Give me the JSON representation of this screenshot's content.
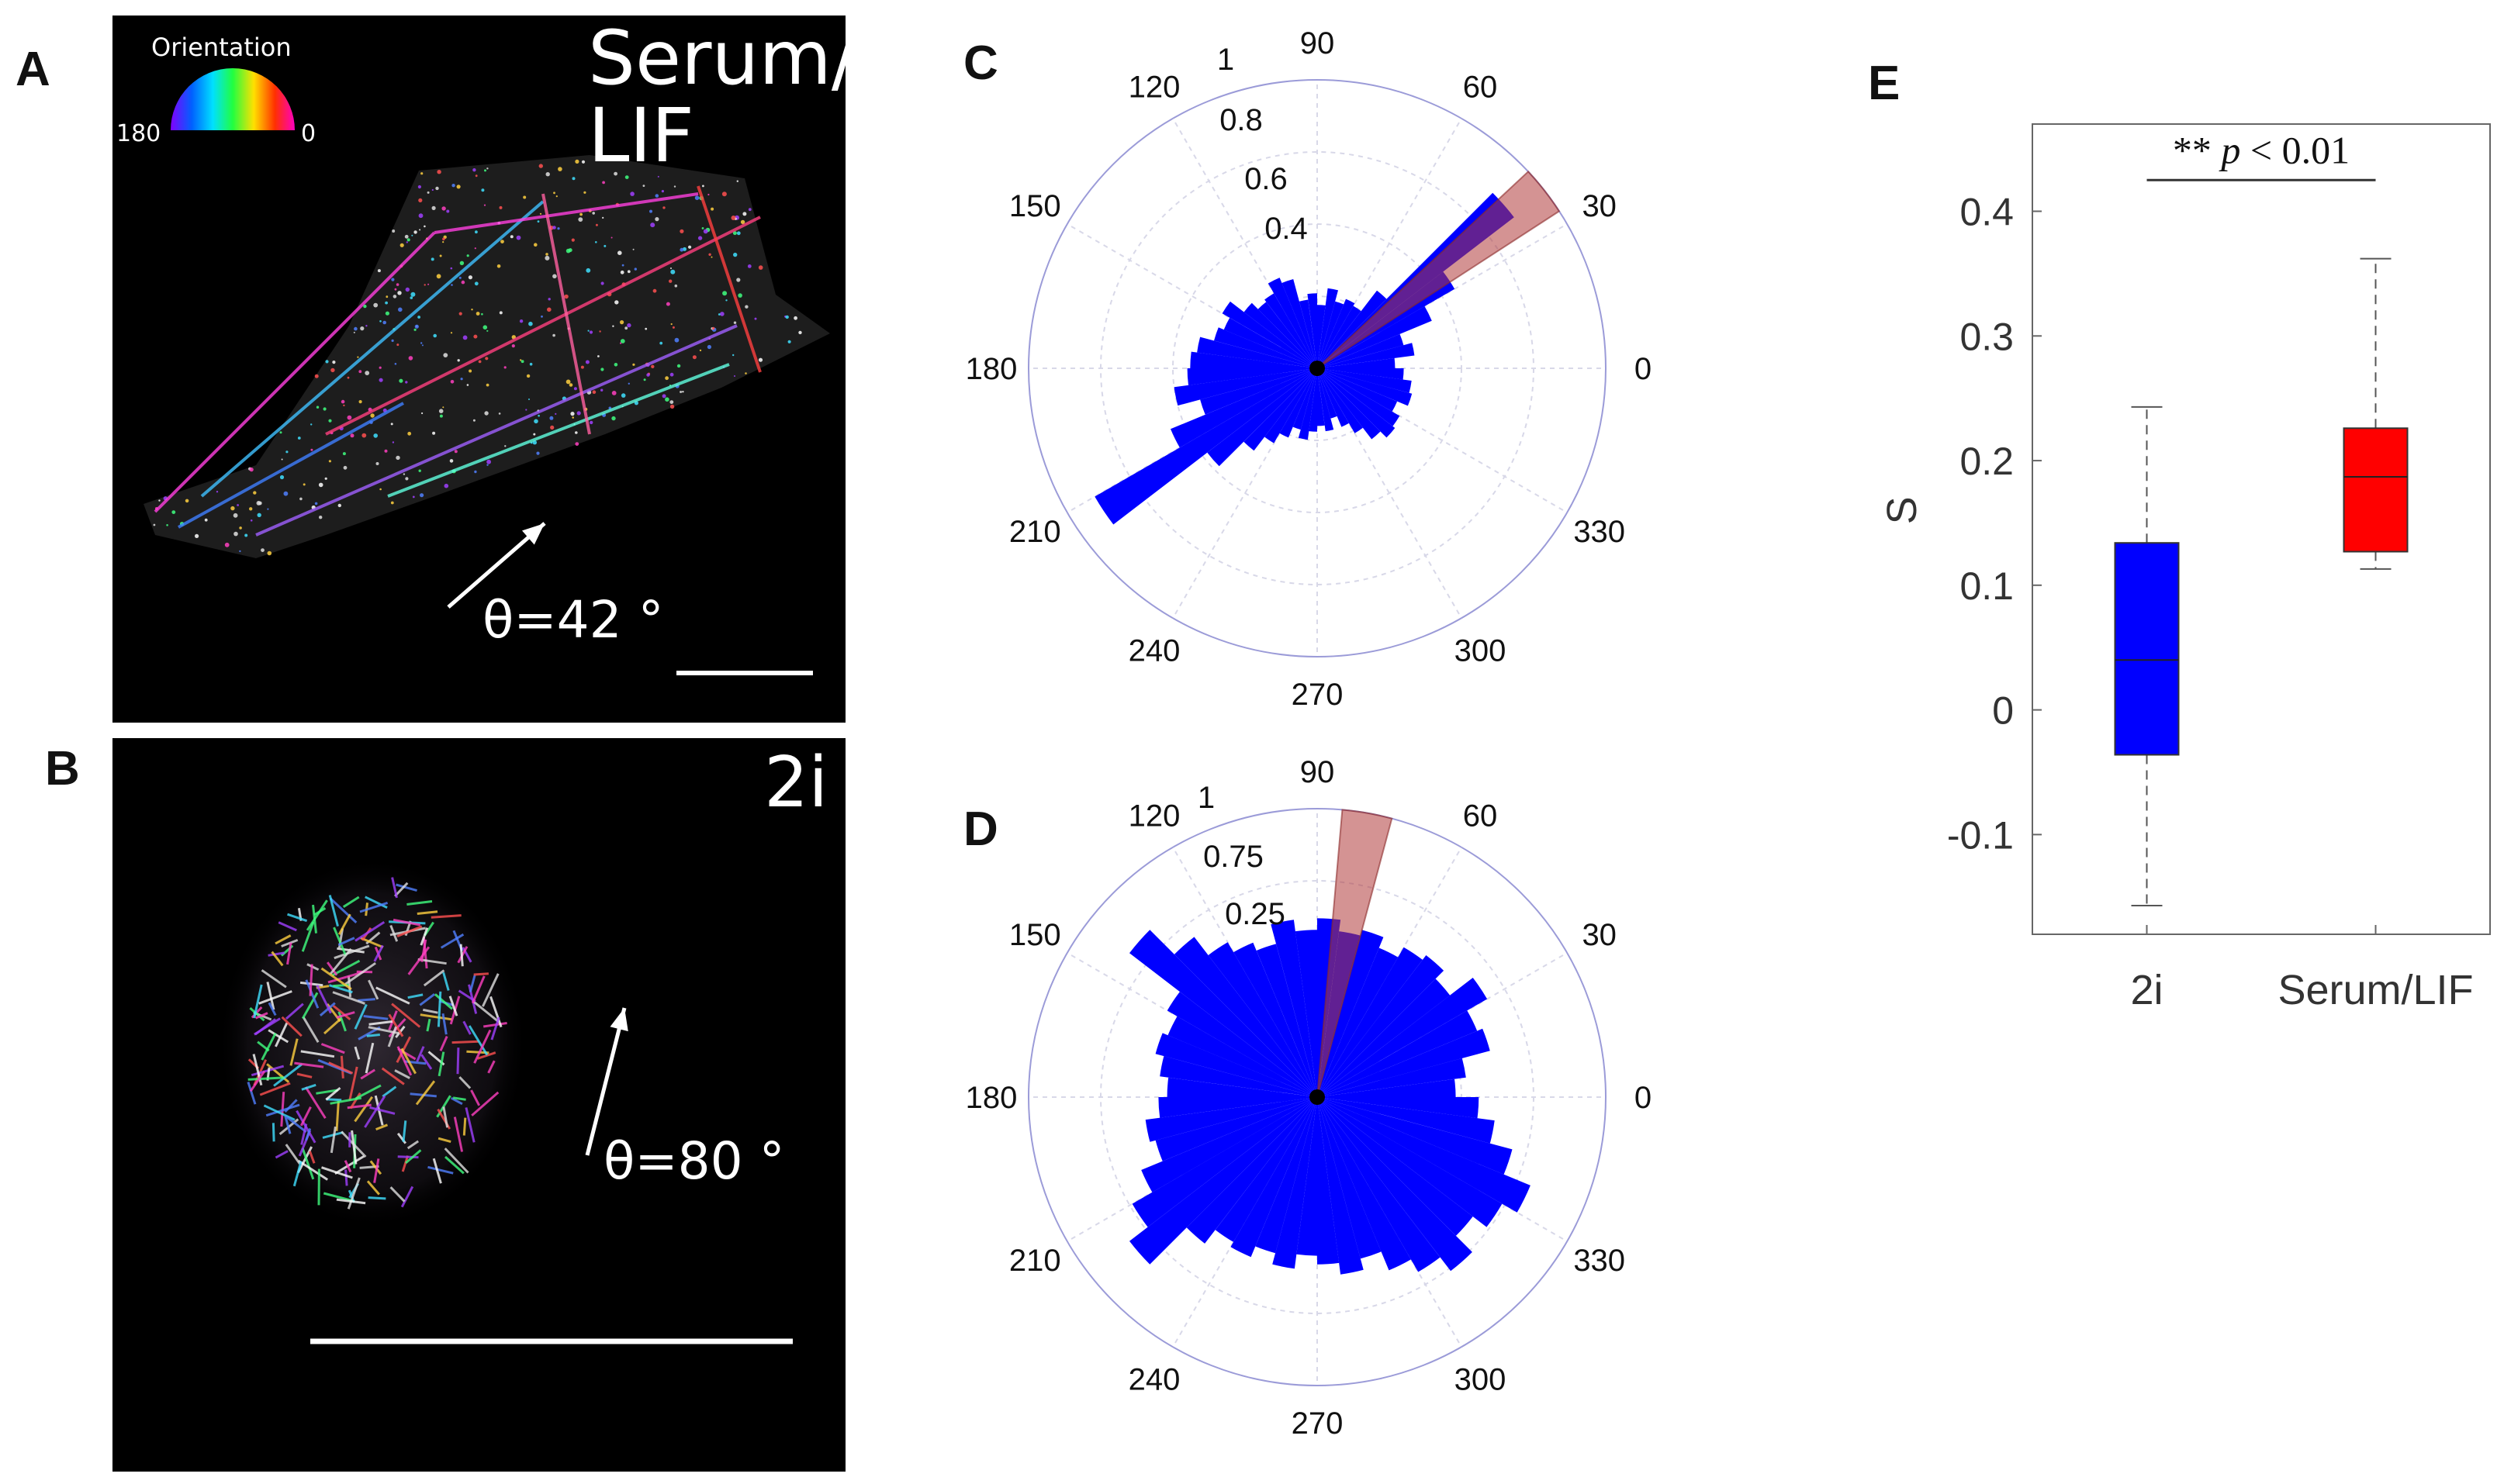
{
  "panels": {
    "A": {
      "letter": "A",
      "colorbar_title": "Orientation",
      "colorbar_min": "180",
      "colorbar_max": "0",
      "condition": "Serum/\nLIF",
      "angle_text": "θ=42 °",
      "mean_angle_deg": 42
    },
    "B": {
      "letter": "B",
      "condition": "2i",
      "angle_text": "θ=80 °",
      "mean_angle_deg": 80
    },
    "C": {
      "letter": "C"
    },
    "D": {
      "letter": "D"
    },
    "E": {
      "letter": "E"
    }
  },
  "colors": {
    "bar_blue": "#0000ff",
    "sector_red": "#b03a3a",
    "box_red": "#ff0000",
    "grid": "#d8d8e8",
    "outer_ring": "#9b9bd8"
  },
  "chart_data": [
    {
      "id": "C",
      "type": "polar_histogram",
      "angle_ticks": [
        "90",
        "60",
        "30",
        "0",
        "330",
        "300",
        "270",
        "240",
        "210",
        "180",
        "150",
        "120"
      ],
      "radial_ticks": [
        "1",
        "0.8",
        "0.6",
        "0.4"
      ],
      "rmax": 1,
      "bin_width_deg": 7.5,
      "centers": [
        3.75,
        11.25,
        18.75,
        26.25,
        33.75,
        41.25,
        48.75,
        56.25,
        63.75,
        71.25,
        78.75,
        86.25,
        93.75,
        101.25,
        108.75,
        116.25,
        123.75,
        131.25,
        138.75,
        146.25,
        153.75,
        161.25,
        168.75,
        176.25,
        183.75,
        191.25,
        198.75,
        206.25,
        213.75,
        221.25,
        228.75,
        236.25,
        243.75,
        251.25,
        258.75,
        266.25,
        273.75,
        281.25,
        288.75,
        296.25,
        303.75,
        311.25,
        318.75,
        326.25,
        333.75,
        341.25,
        348.75,
        356.25
      ],
      "values": [
        0.27,
        0.34,
        0.31,
        0.43,
        0.55,
        0.86,
        0.34,
        0.25,
        0.26,
        0.24,
        0.28,
        0.22,
        0.26,
        0.24,
        0.32,
        0.34,
        0.3,
        0.29,
        0.32,
        0.38,
        0.35,
        0.37,
        0.42,
        0.44,
        0.45,
        0.5,
        0.42,
        0.55,
        0.89,
        0.48,
        0.36,
        0.3,
        0.26,
        0.22,
        0.25,
        0.22,
        0.2,
        0.22,
        0.18,
        0.22,
        0.26,
        0.31,
        0.34,
        0.33,
        0.3,
        0.34,
        0.33,
        0.3
      ],
      "mean_sector_deg": [
        33,
        43
      ],
      "mean_sector_r": [
        0,
        1
      ]
    },
    {
      "id": "D",
      "type": "polar_histogram",
      "angle_ticks": [
        "90",
        "60",
        "30",
        "0",
        "330",
        "300",
        "270",
        "240",
        "210",
        "180",
        "150",
        "120"
      ],
      "radial_ticks": [
        "1",
        "0.75",
        "0.25"
      ],
      "rmax": 1,
      "bin_width_deg": 7.5,
      "centers": [
        3.75,
        11.25,
        18.75,
        26.25,
        33.75,
        41.25,
        48.75,
        56.25,
        63.75,
        71.25,
        78.75,
        86.25,
        93.75,
        101.25,
        108.75,
        116.25,
        123.75,
        131.25,
        138.75,
        146.25,
        153.75,
        161.25,
        168.75,
        176.25,
        183.75,
        191.25,
        198.75,
        206.25,
        213.75,
        221.25,
        228.75,
        236.25,
        243.75,
        251.25,
        258.75,
        266.25,
        273.75,
        281.25,
        288.75,
        296.25,
        303.75,
        311.25,
        318.75,
        326.25,
        333.75,
        341.25,
        348.75,
        356.25
      ],
      "values": [
        0.48,
        0.52,
        0.62,
        0.6,
        0.68,
        0.58,
        0.62,
        0.6,
        0.56,
        0.6,
        0.58,
        0.62,
        0.58,
        0.62,
        0.55,
        0.58,
        0.62,
        0.7,
        0.82,
        0.6,
        0.56,
        0.58,
        0.55,
        0.52,
        0.55,
        0.6,
        0.58,
        0.66,
        0.74,
        0.82,
        0.64,
        0.58,
        0.6,
        0.56,
        0.6,
        0.55,
        0.58,
        0.62,
        0.58,
        0.65,
        0.7,
        0.76,
        0.68,
        0.74,
        0.8,
        0.7,
        0.62,
        0.56
      ],
      "mean_sector_deg": [
        75,
        85
      ],
      "mean_sector_r": [
        0,
        1
      ]
    },
    {
      "id": "E",
      "type": "boxplot",
      "ylabel": "S",
      "ylim": [
        -0.18,
        0.47
      ],
      "yticks": [
        -0.1,
        0,
        0.1,
        0.2,
        0.3,
        0.4
      ],
      "ytick_labels": [
        "-0.1",
        "0",
        "0.1",
        "0.2",
        "0.3",
        "0.4"
      ],
      "categories": [
        "2i",
        "Serum/LIF"
      ],
      "boxes": [
        {
          "whisker_low": -0.157,
          "q1": -0.036,
          "median": 0.04,
          "q3": 0.134,
          "whisker_high": 0.243,
          "color": "#0000ff"
        },
        {
          "whisker_low": 0.113,
          "q1": 0.127,
          "median": 0.187,
          "q3": 0.226,
          "whisker_high": 0.362,
          "color": "#ff0000"
        }
      ],
      "significance": {
        "stars": "**",
        "p_italic": "p",
        "rest": "< 0.01",
        "y": 0.425
      }
    }
  ]
}
